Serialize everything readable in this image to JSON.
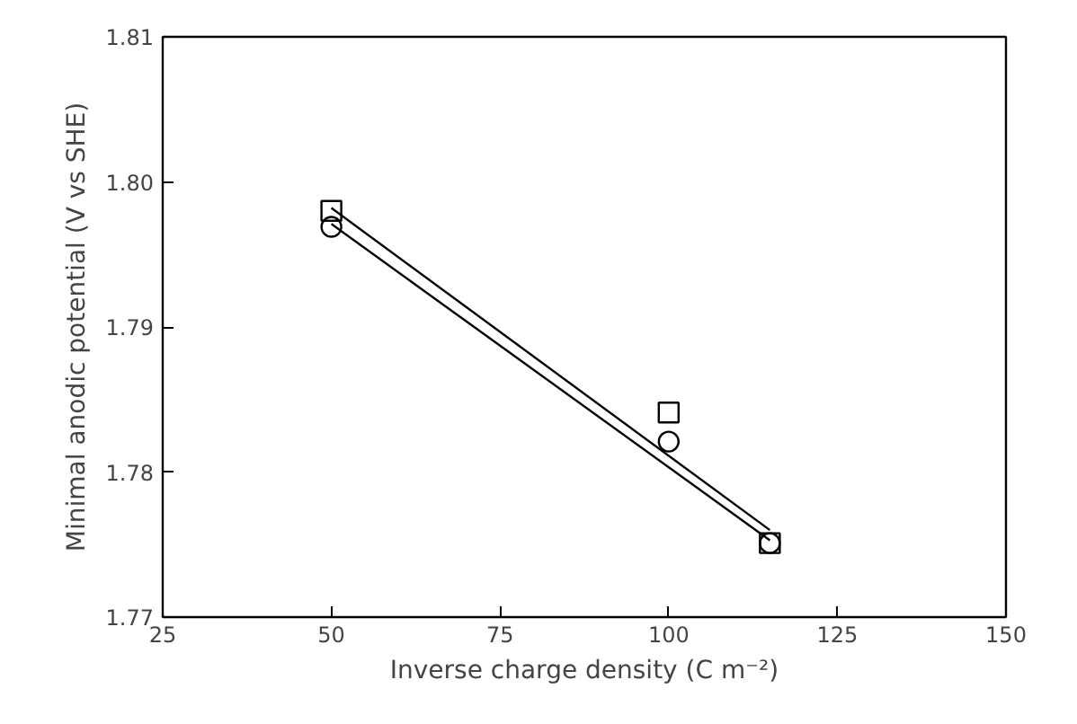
{
  "chart_data": {
    "type": "scatter",
    "xlabel": "Inverse charge density (C m⁻²)",
    "ylabel": "Minimal anodic potential (V vs SHE)",
    "xlim": [
      25,
      150
    ],
    "xticks": [
      25,
      50,
      75,
      100,
      125,
      150
    ],
    "ylim": [
      1.77,
      1.81
    ],
    "yticks": [
      1.77,
      1.78,
      1.79,
      {
        "value": 1.8,
        "label": "1.80"
      },
      1.81
    ],
    "grid": false,
    "series": [
      {
        "marker": "square",
        "color": "#000000",
        "x": [
          50,
          100,
          115
        ],
        "values": [
          1.798,
          1.7841,
          1.7751
        ]
      },
      {
        "marker": "circle",
        "color": "#000000",
        "x": [
          50,
          100,
          115
        ],
        "values": [
          1.7969,
          1.7821,
          1.7751
        ]
      },
      {
        "type": "line",
        "marker": "none",
        "color": "#000000",
        "x": [
          50,
          115
        ],
        "values": [
          1.7982,
          1.776
        ]
      },
      {
        "type": "line",
        "marker": "none",
        "color": "#000000",
        "x": [
          50,
          115
        ],
        "values": [
          1.7971,
          1.7753
        ]
      }
    ]
  }
}
